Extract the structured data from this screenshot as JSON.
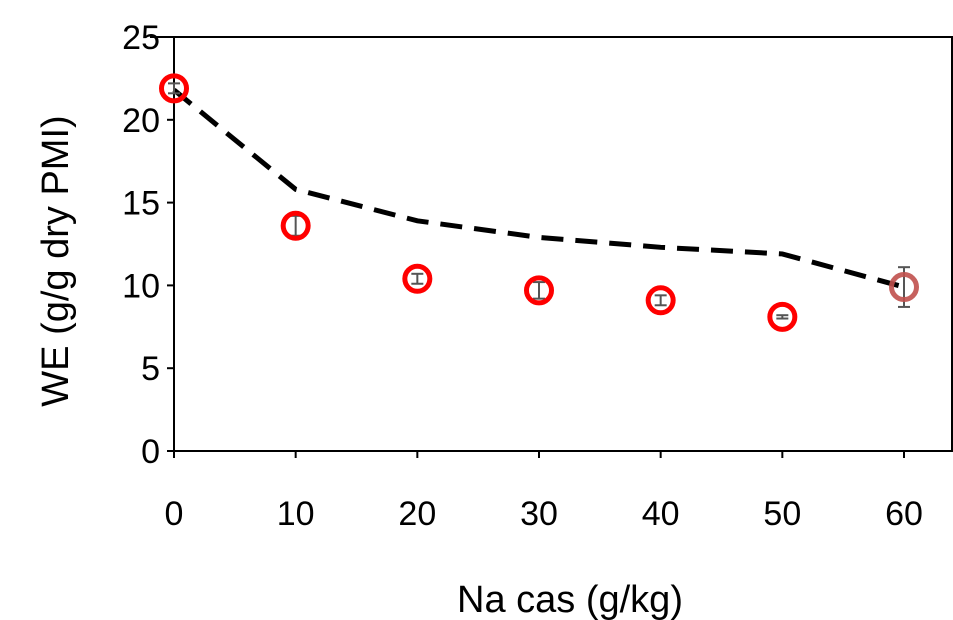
{
  "chart_data": {
    "type": "scatter",
    "xlabel": "Na cas (g/kg)",
    "ylabel": "WE (g/g dry PMI)",
    "xlim": [
      0,
      60
    ],
    "ylim": [
      0,
      25
    ],
    "x_ticks": [
      "0",
      "10",
      "20",
      "30",
      "40",
      "50",
      "60"
    ],
    "y_ticks": [
      "0",
      "5",
      "10",
      "15",
      "20",
      "25"
    ],
    "grid": false,
    "legend": "none",
    "series": [
      {
        "style": "markers",
        "color": "#ff0000",
        "x": [
          0,
          10,
          20,
          30,
          40,
          50,
          60
        ],
        "y": [
          21.9,
          13.6,
          10.4,
          9.7,
          9.1,
          8.1,
          9.9
        ],
        "error": [
          0.3,
          0.6,
          0.3,
          0.5,
          0.3,
          0.1,
          1.2
        ]
      },
      {
        "style": "dashed-line",
        "color": "#000000",
        "x": [
          0,
          10,
          20,
          30,
          40,
          50,
          60
        ],
        "y": [
          21.8,
          15.8,
          13.9,
          12.9,
          12.3,
          11.9,
          9.9
        ]
      }
    ]
  }
}
